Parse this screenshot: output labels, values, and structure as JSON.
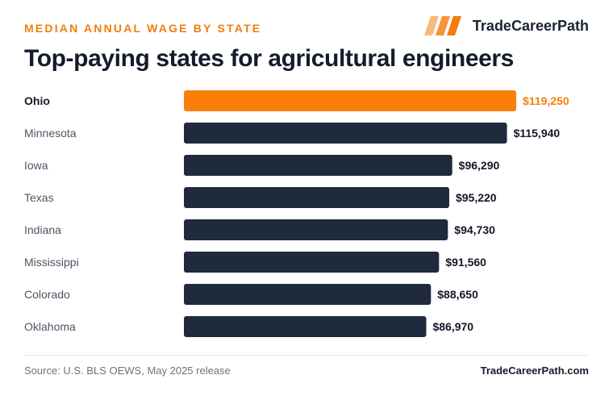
{
  "header": {
    "eyebrow": "MEDIAN ANNUAL WAGE BY STATE",
    "brand_name": "TradeCareerPath"
  },
  "chart_data": {
    "type": "bar",
    "orientation": "horizontal",
    "title": "Top-paying states for agricultural engineers",
    "subtitle": "MEDIAN ANNUAL WAGE BY STATE",
    "categories": [
      "Ohio",
      "Minnesota",
      "Iowa",
      "Texas",
      "Indiana",
      "Mississippi",
      "Colorado",
      "Oklahoma"
    ],
    "values": [
      119250,
      115940,
      96290,
      95220,
      94730,
      91560,
      88650,
      86970
    ],
    "value_labels": [
      "$119,250",
      "$115,940",
      "$96,290",
      "$95,220",
      "$94,730",
      "$91,560",
      "$88,650",
      "$86,970"
    ],
    "highlight_index": 0,
    "colors": {
      "highlight": "#f77f0a",
      "bar": "#1f2a3c",
      "label": "#4b5563",
      "highlight_label": "#111827",
      "value": "#111827"
    },
    "grid": false,
    "legend": "none"
  },
  "footer": {
    "source": "Source: U.S. BLS OEWS, May 2025 release",
    "brand_url": "TradeCareerPath.com"
  }
}
